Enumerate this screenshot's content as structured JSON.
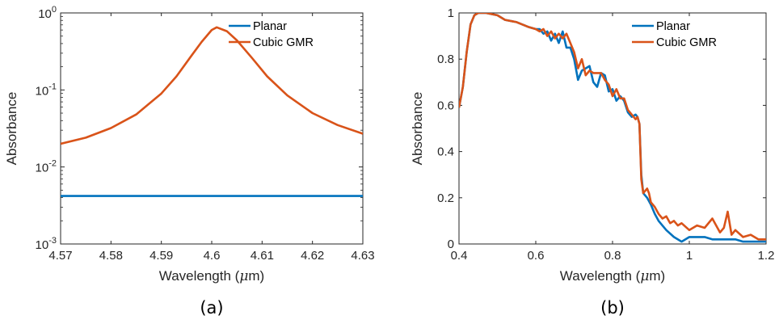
{
  "chart_data": [
    {
      "type": "line",
      "panel_label": "(a)",
      "xlabel_main": "Wavelength (",
      "xlabel_mu": "μ",
      "xlabel_tail": "m)",
      "ylabel": "Absorbance",
      "yscale": "log",
      "xlim": [
        4.57,
        4.63
      ],
      "ylim": [
        0.001,
        1
      ],
      "xticks": [
        4.57,
        4.58,
        4.59,
        4.6,
        4.61,
        4.62,
        4.63
      ],
      "xtick_labels": [
        "4.57",
        "4.58",
        "4.59",
        "4.6",
        "4.61",
        "4.62",
        "4.63"
      ],
      "yticks": [
        {
          "value": 0.001,
          "base": "10",
          "exp": "-3"
        },
        {
          "value": 0.01,
          "base": "10",
          "exp": "-2"
        },
        {
          "value": 0.1,
          "base": "10",
          "exp": "-1"
        },
        {
          "value": 1,
          "base": "10",
          "exp": "0"
        }
      ],
      "legend_position": "top-right",
      "grid": false,
      "series": [
        {
          "name": "Planar",
          "color": "#0072BD",
          "x": [
            4.57,
            4.63
          ],
          "y": [
            0.0042,
            0.0042
          ]
        },
        {
          "name": "Cubic GMR",
          "color": "#D95319",
          "x": [
            4.57,
            4.575,
            4.58,
            4.585,
            4.59,
            4.593,
            4.596,
            4.598,
            4.6,
            4.601,
            4.603,
            4.605,
            4.608,
            4.611,
            4.615,
            4.62,
            4.625,
            4.63
          ],
          "y": [
            0.02,
            0.024,
            0.032,
            0.048,
            0.09,
            0.15,
            0.28,
            0.42,
            0.6,
            0.65,
            0.58,
            0.44,
            0.26,
            0.15,
            0.085,
            0.05,
            0.035,
            0.027
          ]
        }
      ]
    },
    {
      "type": "line",
      "panel_label": "(b)",
      "xlabel_main": "Wavelength (",
      "xlabel_mu": "μ",
      "xlabel_tail": "m)",
      "ylabel": "Absorbance",
      "yscale": "linear",
      "xlim": [
        0.4,
        1.2
      ],
      "ylim": [
        0,
        1
      ],
      "xticks": [
        0.4,
        0.6,
        0.8,
        1.0,
        1.2
      ],
      "xtick_labels": [
        "0.4",
        "0.6",
        "0.8",
        "1",
        "1.2"
      ],
      "yticks": [
        0,
        0.2,
        0.4,
        0.6,
        0.8,
        1
      ],
      "ytick_labels": [
        "0",
        "0.2",
        "0.4",
        "0.6",
        "0.8",
        "1"
      ],
      "legend_position": "top-right",
      "grid": false,
      "series": [
        {
          "name": "Planar",
          "color": "#0072BD",
          "x": [
            0.4,
            0.41,
            0.42,
            0.43,
            0.44,
            0.45,
            0.47,
            0.5,
            0.52,
            0.55,
            0.58,
            0.6,
            0.61,
            0.62,
            0.63,
            0.64,
            0.65,
            0.66,
            0.67,
            0.68,
            0.69,
            0.7,
            0.71,
            0.72,
            0.73,
            0.74,
            0.75,
            0.76,
            0.77,
            0.78,
            0.79,
            0.8,
            0.81,
            0.82,
            0.83,
            0.84,
            0.85,
            0.86,
            0.865,
            0.87,
            0.875,
            0.88,
            0.89,
            0.9,
            0.91,
            0.92,
            0.94,
            0.96,
            0.98,
            1.0,
            1.02,
            1.04,
            1.06,
            1.08,
            1.1,
            1.12,
            1.14,
            1.16,
            1.18,
            1.2
          ],
          "y": [
            0.59,
            0.68,
            0.83,
            0.95,
            0.99,
            1.0,
            1.0,
            0.99,
            0.97,
            0.96,
            0.94,
            0.93,
            0.93,
            0.91,
            0.92,
            0.88,
            0.91,
            0.87,
            0.92,
            0.85,
            0.85,
            0.8,
            0.71,
            0.75,
            0.76,
            0.77,
            0.7,
            0.68,
            0.74,
            0.73,
            0.66,
            0.67,
            0.62,
            0.64,
            0.62,
            0.57,
            0.55,
            0.56,
            0.55,
            0.52,
            0.3,
            0.22,
            0.2,
            0.17,
            0.13,
            0.1,
            0.06,
            0.03,
            0.01,
            0.03,
            0.03,
            0.03,
            0.02,
            0.02,
            0.02,
            0.02,
            0.01,
            0.01,
            0.01,
            0.01
          ]
        },
        {
          "name": "Cubic GMR",
          "color": "#D95319",
          "x": [
            0.4,
            0.41,
            0.42,
            0.43,
            0.44,
            0.45,
            0.47,
            0.5,
            0.52,
            0.55,
            0.58,
            0.6,
            0.61,
            0.62,
            0.63,
            0.64,
            0.65,
            0.66,
            0.67,
            0.68,
            0.69,
            0.7,
            0.71,
            0.72,
            0.73,
            0.74,
            0.75,
            0.76,
            0.77,
            0.78,
            0.79,
            0.8,
            0.81,
            0.82,
            0.83,
            0.84,
            0.85,
            0.86,
            0.865,
            0.87,
            0.875,
            0.88,
            0.89,
            0.895,
            0.9,
            0.91,
            0.92,
            0.93,
            0.94,
            0.95,
            0.96,
            0.97,
            0.98,
            1.0,
            1.02,
            1.04,
            1.06,
            1.08,
            1.09,
            1.1,
            1.11,
            1.12,
            1.14,
            1.16,
            1.18,
            1.2
          ],
          "y": [
            0.59,
            0.68,
            0.83,
            0.95,
            0.99,
            1.0,
            1.0,
            0.99,
            0.97,
            0.96,
            0.94,
            0.93,
            0.92,
            0.93,
            0.9,
            0.92,
            0.89,
            0.91,
            0.89,
            0.91,
            0.87,
            0.83,
            0.76,
            0.8,
            0.73,
            0.75,
            0.74,
            0.74,
            0.74,
            0.71,
            0.69,
            0.64,
            0.67,
            0.63,
            0.63,
            0.58,
            0.56,
            0.54,
            0.55,
            0.52,
            0.28,
            0.22,
            0.24,
            0.22,
            0.18,
            0.16,
            0.13,
            0.11,
            0.12,
            0.09,
            0.1,
            0.08,
            0.09,
            0.06,
            0.08,
            0.07,
            0.11,
            0.05,
            0.07,
            0.14,
            0.04,
            0.06,
            0.03,
            0.04,
            0.02,
            0.02
          ]
        }
      ]
    }
  ]
}
